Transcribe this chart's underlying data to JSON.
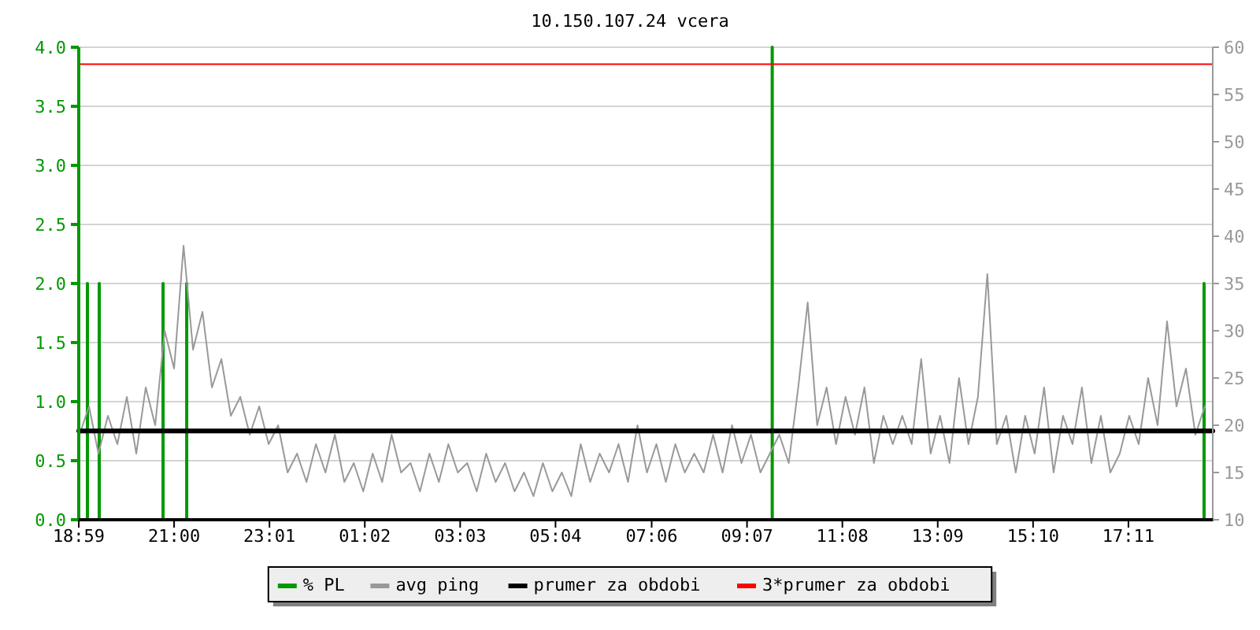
{
  "chart_data": {
    "type": "line",
    "title": "10.150.107.24 vcera",
    "xlim": [
      "2000-01-01T18:59",
      "2000-01-02T18:58"
    ],
    "xticks": [
      {
        "value": "2000-01-01T18:59",
        "label": "18:59"
      },
      {
        "value": "2000-01-01T21:00",
        "label": "21:00"
      },
      {
        "value": "2000-01-01T23:01",
        "label": "23:01"
      },
      {
        "value": "2000-01-02T01:02",
        "label": "01:02"
      },
      {
        "value": "2000-01-02T03:03",
        "label": "03:03"
      },
      {
        "value": "2000-01-02T05:04",
        "label": "05:04"
      },
      {
        "value": "2000-01-02T07:06",
        "label": "07:06"
      },
      {
        "value": "2000-01-02T09:07",
        "label": "09:07"
      },
      {
        "value": "2000-01-02T11:08",
        "label": "11:08"
      },
      {
        "value": "2000-01-02T13:09",
        "label": "13:09"
      },
      {
        "value": "2000-01-02T15:10",
        "label": "15:10"
      },
      {
        "value": "2000-01-02T17:11",
        "label": "17:11"
      }
    ],
    "ylim": [
      0,
      4
    ],
    "yticks": [
      {
        "value": 0,
        "label": "0.0"
      },
      {
        "value": 0.5,
        "label": "0.5"
      },
      {
        "value": 1,
        "label": "1.0"
      },
      {
        "value": 1.5,
        "label": "1.5"
      },
      {
        "value": 2,
        "label": "2.0"
      },
      {
        "value": 2.5,
        "label": "2.5"
      },
      {
        "value": 3,
        "label": "3.0"
      },
      {
        "value": 3.5,
        "label": "3.5"
      },
      {
        "value": 4,
        "label": "4.0"
      }
    ],
    "y2lim": [
      10,
      60
    ],
    "y2ticks": [
      10,
      15,
      20,
      25,
      30,
      35,
      40,
      45,
      50,
      55,
      60
    ],
    "grid": "y",
    "legend": "bottom",
    "series": [
      {
        "name": "% PL",
        "color": "#009900",
        "axis": "y",
        "x": [
          "2000-01-01T18:59",
          "2000-01-01T19:10",
          "2000-01-01T19:10",
          "2000-01-01T19:10",
          "2000-01-01T19:25",
          "2000-01-01T19:25",
          "2000-01-01T19:25",
          "2000-01-01T20:46",
          "2000-01-01T20:46",
          "2000-01-01T20:46",
          "2000-01-01T21:16",
          "2000-01-01T21:16",
          "2000-01-01T21:16",
          "2000-01-02T09:39",
          "2000-01-02T09:39",
          "2000-01-02T09:39",
          "2000-01-02T18:47",
          "2000-01-02T18:47",
          "2000-01-02T18:47",
          "2000-01-02T18:58"
        ],
        "values": [
          0,
          0,
          2,
          0,
          0,
          2,
          0,
          0,
          2,
          0,
          0,
          2,
          0,
          0,
          4,
          0,
          0,
          2,
          0,
          0
        ]
      },
      {
        "name": "avg ping",
        "color": "#999999",
        "axis": "y2",
        "x": [
          "2000-01-01T19:00",
          "2000-01-01T19:12",
          "2000-01-01T19:24",
          "2000-01-01T19:36",
          "2000-01-01T19:48",
          "2000-01-01T20:00",
          "2000-01-01T20:12",
          "2000-01-01T20:24",
          "2000-01-01T20:36",
          "2000-01-01T20:48",
          "2000-01-01T21:00",
          "2000-01-01T21:12",
          "2000-01-01T21:24",
          "2000-01-01T21:36",
          "2000-01-01T21:48",
          "2000-01-01T22:00",
          "2000-01-01T22:12",
          "2000-01-01T22:24",
          "2000-01-01T22:36",
          "2000-01-01T22:48",
          "2000-01-01T23:00",
          "2000-01-01T23:12",
          "2000-01-01T23:24",
          "2000-01-01T23:36",
          "2000-01-01T23:48",
          "2000-01-02T00:00",
          "2000-01-02T00:12",
          "2000-01-02T00:24",
          "2000-01-02T00:36",
          "2000-01-02T00:48",
          "2000-01-02T01:00",
          "2000-01-02T01:12",
          "2000-01-02T01:24",
          "2000-01-02T01:36",
          "2000-01-02T01:48",
          "2000-01-02T02:00",
          "2000-01-02T02:12",
          "2000-01-02T02:24",
          "2000-01-02T02:36",
          "2000-01-02T02:48",
          "2000-01-02T03:00",
          "2000-01-02T03:12",
          "2000-01-02T03:24",
          "2000-01-02T03:36",
          "2000-01-02T03:48",
          "2000-01-02T04:00",
          "2000-01-02T04:12",
          "2000-01-02T04:24",
          "2000-01-02T04:36",
          "2000-01-02T04:48",
          "2000-01-02T05:00",
          "2000-01-02T05:12",
          "2000-01-02T05:24",
          "2000-01-02T05:36",
          "2000-01-02T05:48",
          "2000-01-02T06:00",
          "2000-01-02T06:12",
          "2000-01-02T06:24",
          "2000-01-02T06:36",
          "2000-01-02T06:48",
          "2000-01-02T07:00",
          "2000-01-02T07:12",
          "2000-01-02T07:24",
          "2000-01-02T07:36",
          "2000-01-02T07:48",
          "2000-01-02T08:00",
          "2000-01-02T08:12",
          "2000-01-02T08:24",
          "2000-01-02T08:36",
          "2000-01-02T08:48",
          "2000-01-02T09:00",
          "2000-01-02T09:12",
          "2000-01-02T09:24",
          "2000-01-02T09:36",
          "2000-01-02T09:48",
          "2000-01-02T10:00",
          "2000-01-02T10:12",
          "2000-01-02T10:24",
          "2000-01-02T10:36",
          "2000-01-02T10:48",
          "2000-01-02T11:00",
          "2000-01-02T11:12",
          "2000-01-02T11:24",
          "2000-01-02T11:36",
          "2000-01-02T11:48",
          "2000-01-02T12:00",
          "2000-01-02T12:12",
          "2000-01-02T12:24",
          "2000-01-02T12:36",
          "2000-01-02T12:48",
          "2000-01-02T13:00",
          "2000-01-02T13:12",
          "2000-01-02T13:24",
          "2000-01-02T13:36",
          "2000-01-02T13:48",
          "2000-01-02T14:00",
          "2000-01-02T14:12",
          "2000-01-02T14:24",
          "2000-01-02T14:36",
          "2000-01-02T14:48",
          "2000-01-02T15:00",
          "2000-01-02T15:12",
          "2000-01-02T15:24",
          "2000-01-02T15:36",
          "2000-01-02T15:48",
          "2000-01-02T16:00",
          "2000-01-02T16:12",
          "2000-01-02T16:24",
          "2000-01-02T16:36",
          "2000-01-02T16:48",
          "2000-01-02T17:00",
          "2000-01-02T17:12",
          "2000-01-02T17:24",
          "2000-01-02T17:36",
          "2000-01-02T17:48",
          "2000-01-02T18:00",
          "2000-01-02T18:12",
          "2000-01-02T18:24",
          "2000-01-02T18:36",
          "2000-01-02T18:48"
        ],
        "values": [
          19,
          22,
          17,
          21,
          18,
          23,
          17,
          24,
          20,
          30,
          26,
          39,
          28,
          32,
          24,
          27,
          21,
          23,
          19,
          22,
          18,
          20,
          15,
          17,
          14,
          18,
          15,
          19,
          14,
          16,
          13,
          17,
          14,
          19,
          15,
          16,
          13,
          17,
          14,
          18,
          15,
          16,
          13,
          17,
          14,
          16,
          13,
          15,
          12.5,
          16,
          13,
          15,
          12.5,
          18,
          14,
          17,
          15,
          18,
          14,
          20,
          15,
          18,
          14,
          18,
          15,
          17,
          15,
          19,
          15,
          20,
          16,
          19,
          15,
          17,
          19,
          16,
          24,
          33,
          20,
          24,
          18,
          23,
          19,
          24,
          16,
          21,
          18,
          21,
          18,
          27,
          17,
          21,
          16,
          25,
          18,
          23,
          36,
          18,
          21,
          15,
          21,
          17,
          24,
          15,
          21,
          18,
          24,
          16,
          21,
          15,
          17,
          21,
          18,
          25,
          20,
          31,
          22,
          26,
          19,
          22
        ]
      },
      {
        "name": "prumer za obdobi",
        "color": "#000000",
        "axis": "y2",
        "x": [
          "2000-01-01T18:59",
          "2000-01-02T18:58"
        ],
        "values": [
          19.4,
          19.4
        ]
      },
      {
        "name": "3*prumer za obdobi",
        "color": "#ff0000",
        "axis": "y2",
        "x": [
          "2000-01-01T18:59",
          "2000-01-02T18:58"
        ],
        "values": [
          58.2,
          58.2
        ]
      }
    ]
  }
}
